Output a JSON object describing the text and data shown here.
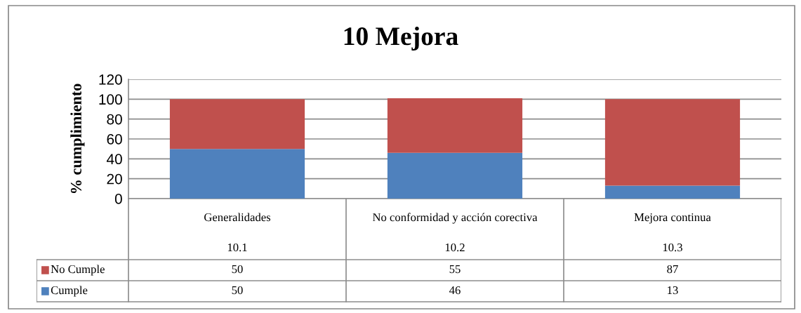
{
  "chart_data": {
    "type": "bar",
    "title": "10 Mejora",
    "ylabel": "% cumplimiento",
    "categories": [
      "Generalidades",
      "No conformidad y acción corectiva",
      "Mejora continua"
    ],
    "annotations": [
      "10.1",
      "10.2",
      "10.3"
    ],
    "stacked": true,
    "data_labels": true,
    "grid": "y",
    "legend": "bottom left",
    "ylim": [
      0,
      120
    ],
    "yticks": [
      0,
      20,
      40,
      60,
      80,
      100,
      120
    ],
    "series": [
      {
        "name": "Cumple",
        "color": "#4f81bd",
        "values": [
          50,
          46,
          13
        ]
      },
      {
        "name": "No Cumple",
        "color": "#c0504d",
        "values": [
          50,
          55,
          87
        ]
      }
    ]
  }
}
